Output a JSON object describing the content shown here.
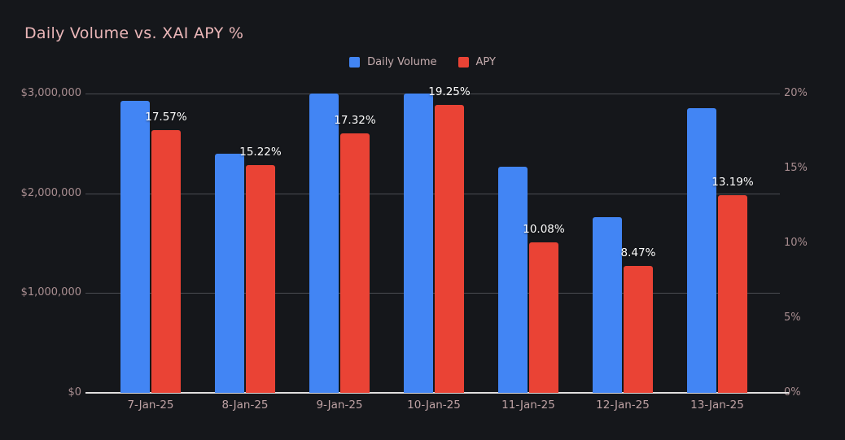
{
  "page": {
    "title": "Daily Volume vs. XAI APY %"
  },
  "legend": {
    "items": [
      {
        "label": "Daily Volume",
        "color": "#4285f4"
      },
      {
        "label": "APY",
        "color": "#ea4335"
      }
    ]
  },
  "chart_data": {
    "type": "bar",
    "title": "Daily Volume vs. XAI APY %",
    "categories": [
      "7-Jan-25",
      "8-Jan-25",
      "9-Jan-25",
      "10-Jan-25",
      "11-Jan-25",
      "12-Jan-25",
      "13-Jan-25"
    ],
    "series": [
      {
        "name": "Daily Volume",
        "axis": "left",
        "color": "#4285f4",
        "values": [
          2930000,
          2400000,
          3000000,
          3000000,
          2270000,
          1760000,
          2850000
        ]
      },
      {
        "name": "APY",
        "axis": "right",
        "color": "#ea4335",
        "values": [
          17.57,
          15.22,
          17.32,
          19.25,
          10.08,
          8.47,
          13.19
        ],
        "data_labels": [
          "17.57%",
          "15.22%",
          "17.32%",
          "19.25%",
          "10.08%",
          "8.47%",
          "13.19%"
        ]
      }
    ],
    "left_axis": {
      "range": [
        0,
        3000000
      ],
      "ticks": [
        {
          "value": 0,
          "label": "$0"
        },
        {
          "value": 1000000,
          "label": "$1,000,000"
        },
        {
          "value": 2000000,
          "label": "$2,000,000"
        },
        {
          "value": 3000000,
          "label": "$3,000,000"
        }
      ]
    },
    "right_axis": {
      "range": [
        0,
        20
      ],
      "ticks": [
        {
          "value": 0,
          "label": "0%"
        },
        {
          "value": 5,
          "label": "5%"
        },
        {
          "value": 10,
          "label": "10%"
        },
        {
          "value": 15,
          "label": "15%"
        },
        {
          "value": 20,
          "label": "20%"
        }
      ]
    },
    "grid": true,
    "legend_position": "top-center"
  },
  "colors": {
    "background": "#15171b",
    "bar_blue": "#4285f4",
    "bar_red": "#ea4335",
    "title_text": "#eab6b8",
    "y_tick_text": "#a98e91",
    "x_tick_text": "#bda1a3",
    "legend_text": "#c6adaf",
    "gridline": "#4a4c52",
    "axis_line": "#e0dede",
    "data_label_text": "#ffffff"
  }
}
